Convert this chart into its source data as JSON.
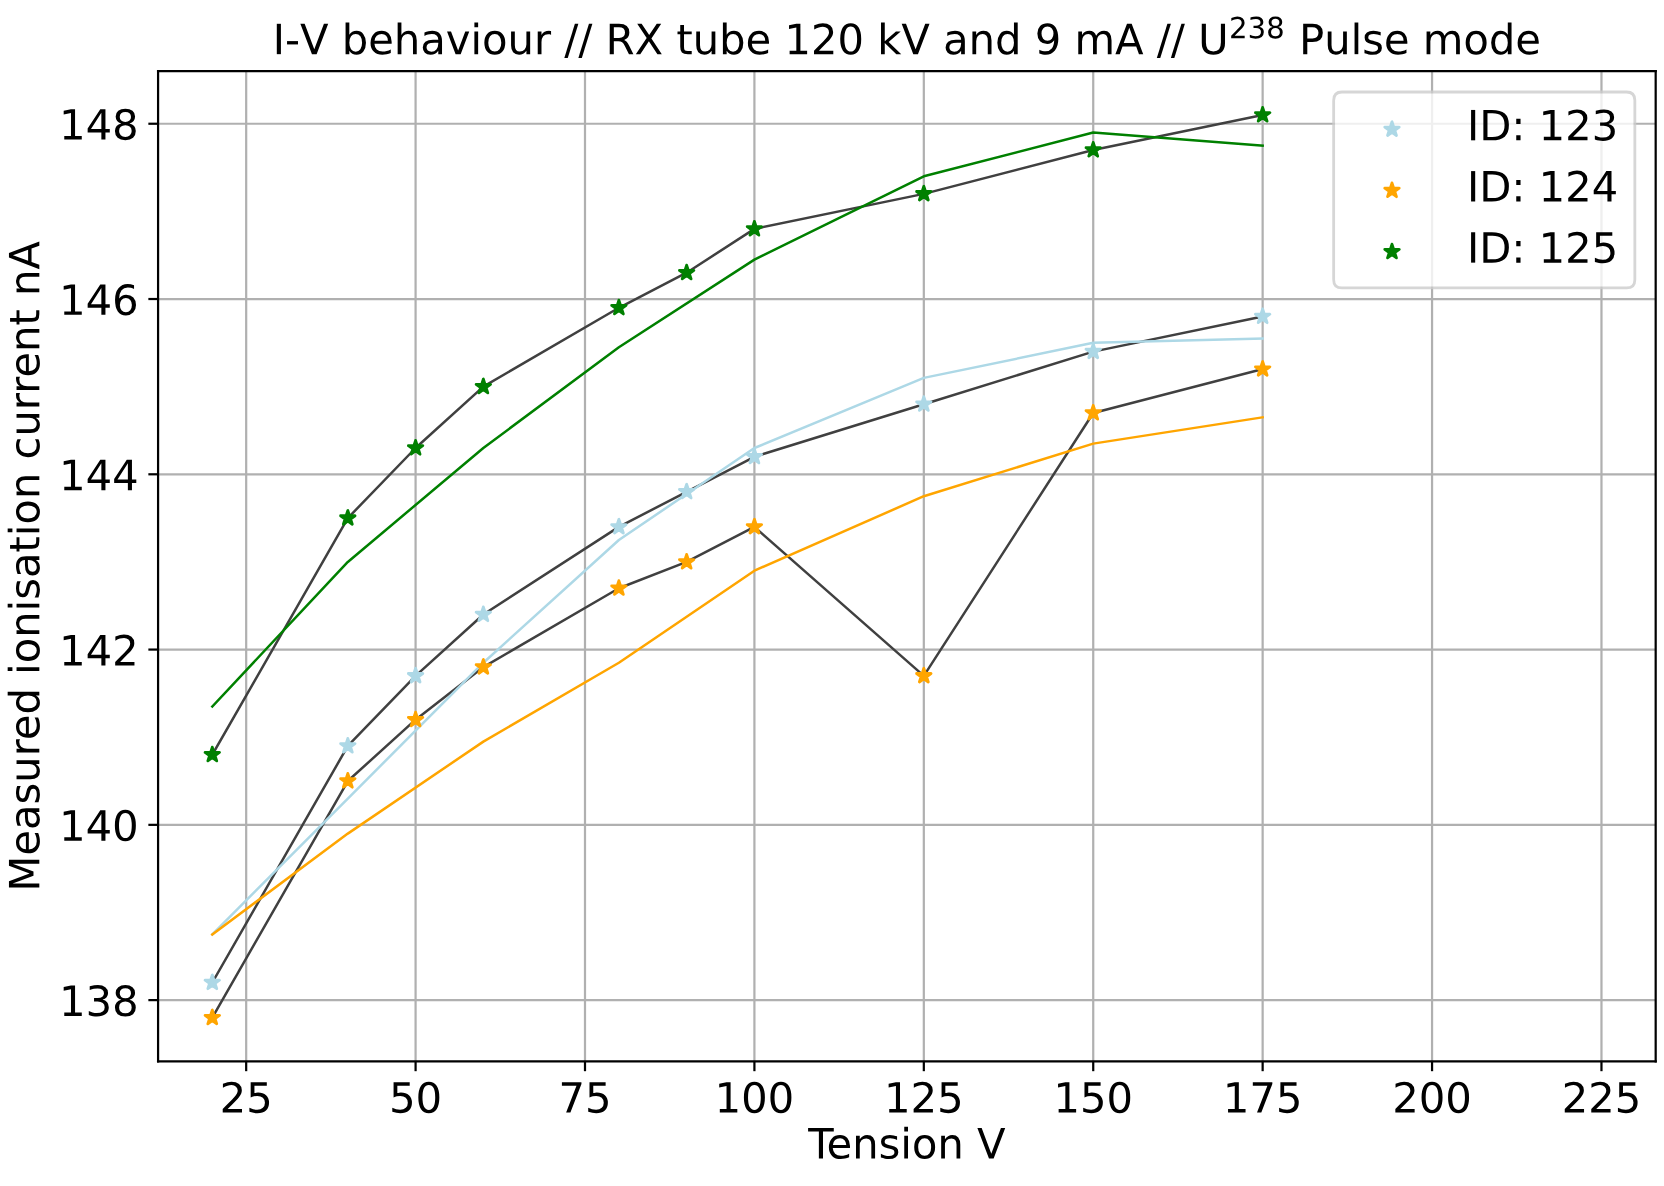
{
  "chart_data": {
    "type": "scatter",
    "title": "I-V behaviour // RX tube 120 kV and 9 mA // U$^{238}$ Pulse mode",
    "xlabel": "Tension V",
    "ylabel": "Measured ionisation current nA",
    "x": [
      20,
      40,
      50,
      60,
      80,
      90,
      100,
      125,
      150,
      175
    ],
    "series": [
      {
        "type": "line",
        "marker": "none",
        "color": "#404040",
        "values": [
          138.2,
          140.9,
          141.7,
          142.4,
          143.4,
          143.8,
          144.2,
          144.8,
          145.4,
          145.8
        ]
      },
      {
        "type": "line",
        "marker": "none",
        "color": "#404040",
        "values": [
          137.8,
          140.5,
          141.2,
          141.8,
          142.7,
          143.0,
          143.4,
          141.7,
          144.7,
          145.2
        ]
      },
      {
        "type": "line",
        "marker": "none",
        "color": "#404040",
        "values": [
          140.8,
          143.5,
          144.3,
          145.0,
          145.9,
          146.3,
          146.8,
          147.2,
          147.7,
          148.1
        ]
      },
      {
        "type": "line",
        "marker": "none",
        "color": "#add8e6",
        "x": [
          20,
          40,
          60,
          80,
          100,
          125,
          150,
          175
        ],
        "values": [
          138.75,
          140.3,
          141.85,
          143.25,
          144.3,
          145.1,
          145.5,
          145.55
        ]
      },
      {
        "type": "line",
        "marker": "none",
        "color": "#ffa500",
        "x": [
          20,
          40,
          60,
          80,
          100,
          125,
          150,
          175
        ],
        "values": [
          138.75,
          139.9,
          140.95,
          141.85,
          142.9,
          143.75,
          144.35,
          144.65
        ]
      },
      {
        "type": "line",
        "marker": "none",
        "color": "#008000",
        "x": [
          20,
          40,
          60,
          80,
          100,
          125,
          150,
          175
        ],
        "values": [
          141.35,
          143.0,
          144.3,
          145.45,
          146.45,
          147.4,
          147.9,
          147.75
        ]
      },
      {
        "name": "ID: 123",
        "color": "#add8e6",
        "values": [
          138.2,
          140.9,
          141.7,
          142.4,
          143.4,
          143.8,
          144.2,
          144.8,
          145.4,
          145.8
        ]
      },
      {
        "name": "ID: 124",
        "color": "#ffa500",
        "values": [
          137.8,
          140.5,
          141.2,
          141.8,
          142.7,
          143.0,
          143.4,
          141.7,
          144.7,
          145.2
        ]
      },
      {
        "name": "ID: 125",
        "color": "#008000",
        "values": [
          140.8,
          143.5,
          144.3,
          145.0,
          145.9,
          146.3,
          146.8,
          147.2,
          147.7,
          148.1
        ]
      }
    ],
    "marker": "star",
    "xlim": [
      12,
      233
    ],
    "ylim": [
      137.3,
      148.6
    ],
    "xticks": [
      25,
      50,
      75,
      100,
      125,
      150,
      175,
      200,
      225
    ],
    "yticks": [
      138,
      140,
      142,
      144,
      146,
      148
    ],
    "grid": true,
    "legend": "top right"
  }
}
